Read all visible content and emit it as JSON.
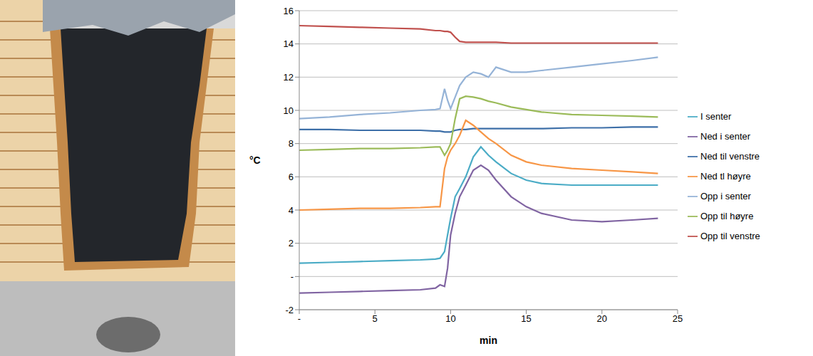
{
  "chart_data": {
    "type": "line",
    "x_label": "min",
    "y_label": "°C",
    "x": [
      0,
      2,
      4,
      6,
      8,
      9,
      9.3,
      9.6,
      9.8,
      10,
      10.3,
      10.6,
      11,
      11.5,
      12,
      12.5,
      13,
      14,
      15,
      16,
      18,
      20,
      22,
      23.7
    ],
    "series": [
      {
        "name": "Ned til venstre",
        "color": "#3d6fa8",
        "values": [
          8.85,
          8.85,
          8.8,
          8.8,
          8.8,
          8.75,
          8.75,
          8.7,
          8.7,
          8.7,
          8.8,
          8.85,
          8.85,
          8.9,
          8.9,
          8.9,
          8.9,
          8.9,
          8.9,
          8.9,
          8.95,
          8.95,
          9.0,
          9.0
        ]
      },
      {
        "name": "Opp til venstre",
        "color": "#c0504d",
        "values": [
          15.1,
          15.05,
          15.0,
          14.95,
          14.9,
          14.8,
          14.8,
          14.75,
          14.75,
          14.7,
          14.4,
          14.15,
          14.1,
          14.1,
          14.1,
          14.1,
          14.1,
          14.05,
          14.05,
          14.05,
          14.05,
          14.05,
          14.05,
          14.05
        ]
      },
      {
        "name": "Opp til høyre",
        "color": "#9bbb59",
        "values": [
          7.6,
          7.65,
          7.7,
          7.7,
          7.75,
          7.8,
          7.8,
          7.3,
          7.6,
          8.0,
          9.5,
          10.7,
          10.85,
          10.8,
          10.7,
          10.55,
          10.45,
          10.2,
          10.05,
          9.9,
          9.75,
          9.7,
          9.65,
          9.6
        ]
      },
      {
        "name": "Ned i senter",
        "color": "#8064a2",
        "values": [
          -1.0,
          -0.95,
          -0.9,
          -0.85,
          -0.8,
          -0.7,
          -0.5,
          -0.6,
          0.5,
          2.5,
          3.8,
          4.8,
          5.5,
          6.4,
          6.7,
          6.4,
          5.8,
          4.8,
          4.2,
          3.8,
          3.4,
          3.3,
          3.4,
          3.5
        ]
      },
      {
        "name": "I senter",
        "color": "#4bacc6",
        "values": [
          0.8,
          0.85,
          0.9,
          0.95,
          1.0,
          1.05,
          1.1,
          1.5,
          2.5,
          3.5,
          4.8,
          5.3,
          6.0,
          7.2,
          7.8,
          7.3,
          6.9,
          6.2,
          5.8,
          5.6,
          5.5,
          5.5,
          5.5,
          5.5
        ]
      },
      {
        "name": "Ned tl høyre",
        "color": "#f79646",
        "values": [
          4.0,
          4.05,
          4.1,
          4.1,
          4.15,
          4.2,
          4.2,
          6.5,
          7.2,
          7.6,
          8.0,
          8.5,
          9.4,
          9.1,
          8.7,
          8.3,
          8.0,
          7.3,
          6.9,
          6.7,
          6.5,
          6.4,
          6.3,
          6.2
        ]
      },
      {
        "name": "Opp i senter",
        "color": "#95b3d7",
        "values": [
          9.5,
          9.6,
          9.75,
          9.85,
          10.0,
          10.05,
          10.1,
          11.3,
          10.6,
          10.1,
          10.8,
          11.5,
          12.0,
          12.3,
          12.2,
          12.0,
          12.6,
          12.3,
          12.3,
          12.4,
          12.6,
          12.8,
          13.0,
          13.2
        ]
      }
    ],
    "xlim": [
      0,
      25
    ],
    "xticks": [
      {
        "value": 0,
        "label": "-"
      },
      5,
      10,
      15,
      20,
      25
    ],
    "ylim": [
      -2,
      16
    ],
    "yticks": [
      -2,
      {
        "value": 0,
        "label": "-"
      },
      2,
      4,
      6,
      8,
      10,
      12,
      14,
      16
    ],
    "grid": true,
    "legend": "right"
  }
}
